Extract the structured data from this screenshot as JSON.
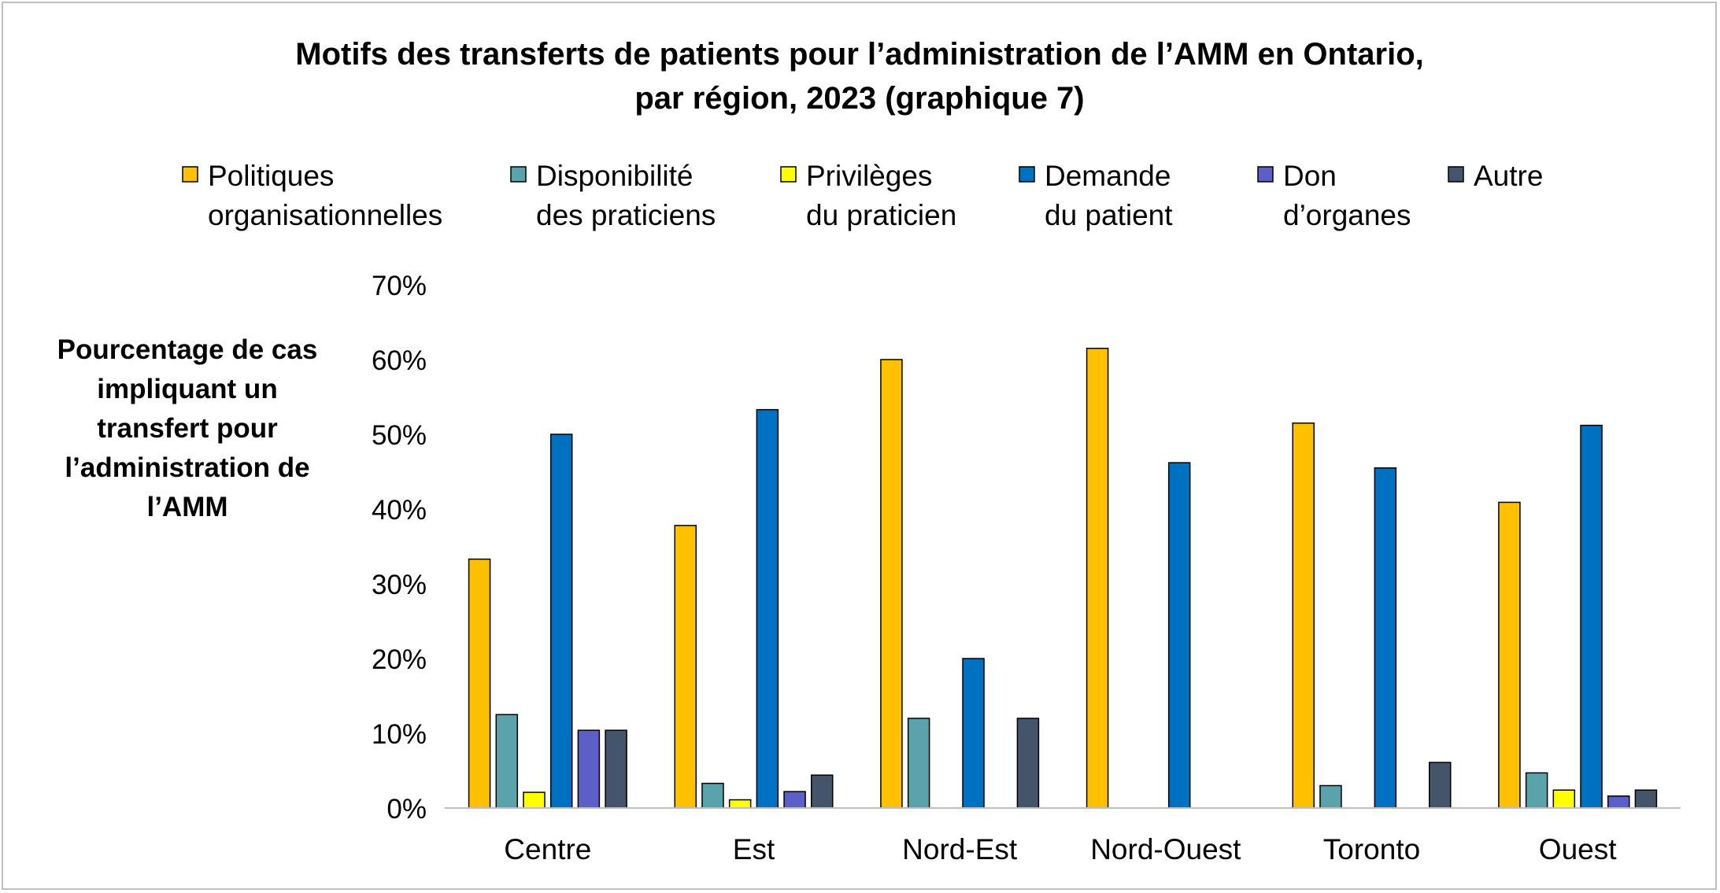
{
  "chart_data": {
    "type": "bar",
    "title_line1": "Motifs des transferts de patients pour l’administration de l’AMM en Ontario,",
    "title_line2": "par région, 2023 (graphique 7)",
    "ylabel_lines": [
      "Pourcentage de cas",
      "impliquant un",
      "transfert pour",
      "l’administration de",
      "l’AMM"
    ],
    "xlabel": "",
    "ylim": [
      0,
      70
    ],
    "y_ticks": [
      "0%",
      "10%",
      "20%",
      "30%",
      "40%",
      "50%",
      "60%",
      "70%"
    ],
    "grid": false,
    "legend_position": "top",
    "categories": [
      "Centre",
      "Est",
      "Nord-Est",
      "Nord-Ouest",
      "Toronto",
      "Ouest"
    ],
    "series": [
      {
        "name_lines": [
          "Politiques",
          "organisationnelles"
        ],
        "color": "#FFC000",
        "values": [
          33.3,
          37.8,
          60.0,
          61.5,
          51.5,
          40.9
        ]
      },
      {
        "name_lines": [
          "Disponibilité",
          "des praticiens"
        ],
        "color": "#5BA3AA",
        "values": [
          12.5,
          3.3,
          12.0,
          0,
          3.0,
          4.7
        ]
      },
      {
        "name_lines": [
          "Privilèges",
          "du praticien"
        ],
        "color": "#FFFF00",
        "values": [
          2.1,
          1.1,
          0,
          0,
          0,
          2.4
        ]
      },
      {
        "name_lines": [
          "Demande",
          "du patient"
        ],
        "color": "#0070C0",
        "values": [
          50.0,
          53.3,
          20.0,
          46.2,
          45.5,
          51.2
        ]
      },
      {
        "name_lines": [
          "Don",
          "d’organes"
        ],
        "color": "#5B5FC7",
        "values": [
          10.4,
          2.2,
          0,
          0,
          0,
          1.6
        ]
      },
      {
        "name_lines": [
          "Autre"
        ],
        "color": "#44546A",
        "values": [
          10.4,
          4.4,
          12.0,
          0,
          6.1,
          2.4
        ]
      }
    ]
  }
}
